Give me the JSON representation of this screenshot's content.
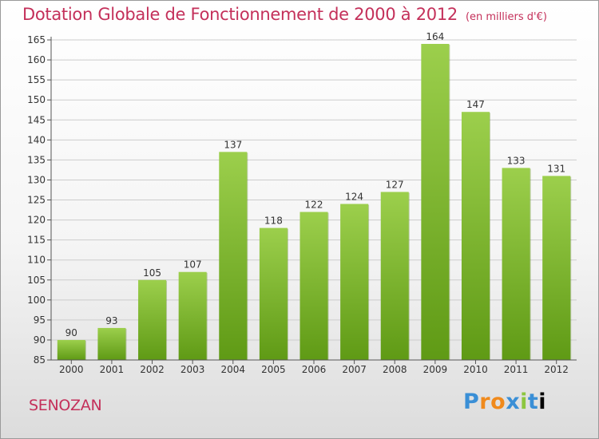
{
  "header": {
    "title": "Dotation Globale de Fonctionnement de 2000 à 2012",
    "unit": "(en milliers d'€)"
  },
  "footer": {
    "commune": "SENOZAN",
    "logo_letters": [
      "P",
      "r",
      "o",
      "x",
      "i",
      "t",
      "i"
    ]
  },
  "colors": {
    "title": "#c4305a",
    "bar_light": "#9ccf4c",
    "bar_dark": "#5f9a15",
    "grid": "#cccccc"
  },
  "chart_data": {
    "type": "bar",
    "title": "Dotation Globale de Fonctionnement de 2000 à 2012",
    "categories": [
      "2000",
      "2001",
      "2002",
      "2003",
      "2004",
      "2005",
      "2006",
      "2007",
      "2008",
      "2009",
      "2010",
      "2011",
      "2012"
    ],
    "values": [
      90,
      93,
      105,
      107,
      137,
      118,
      122,
      124,
      127,
      164,
      147,
      133,
      131
    ],
    "ylim": [
      85,
      165
    ],
    "yticks": [
      85,
      90,
      95,
      100,
      105,
      110,
      115,
      120,
      125,
      130,
      135,
      140,
      145,
      150,
      155,
      160,
      165
    ],
    "grid": true,
    "xlabel": "",
    "ylabel": ""
  }
}
